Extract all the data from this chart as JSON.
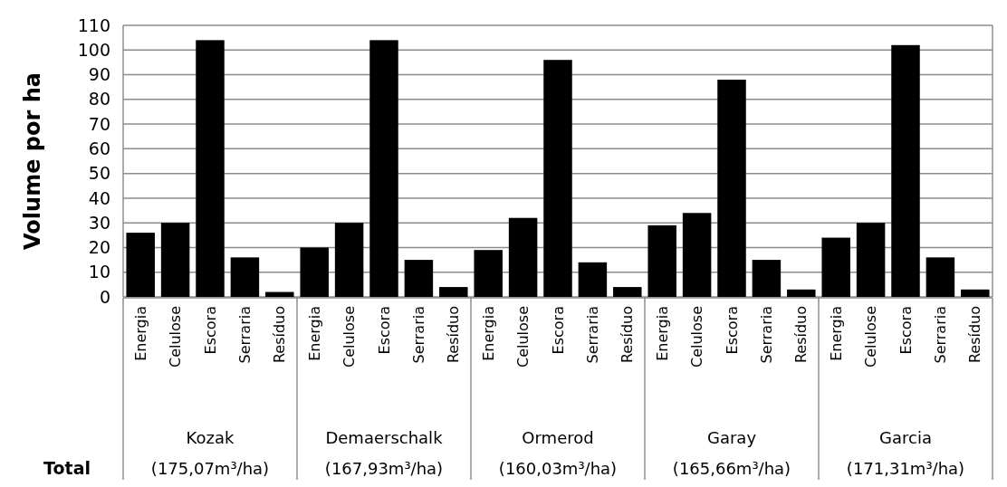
{
  "chart_data": {
    "type": "bar",
    "ylabel": "Volume por ha",
    "categories": [
      "Energia",
      "Celulose",
      "Escora",
      "Serraria",
      "Resíduo",
      "Energia",
      "Celulose",
      "Escora",
      "Serraria",
      "Resíduo",
      "Energia",
      "Celulose",
      "Escora",
      "Serraria",
      "Resíduo",
      "Energia",
      "Celulose",
      "Escora",
      "Serraria",
      "Resíduo",
      "Energia",
      "Celulose",
      "Escora",
      "Serraria",
      "Resíduo"
    ],
    "values": [
      26,
      30,
      104,
      16,
      2,
      20,
      30,
      104,
      15,
      4,
      19,
      32,
      96,
      14,
      4,
      29,
      34,
      88,
      15,
      3,
      24,
      30,
      102,
      16,
      3
    ],
    "color": "#000000",
    "ylim": [
      0,
      110
    ],
    "yticks": [
      0,
      10,
      20,
      30,
      40,
      50,
      60,
      70,
      80,
      90,
      100,
      110
    ],
    "grid": "y",
    "annotations": [
      "Total",
      "Kozak\n(175,07m³/ha)",
      "Demaerschalk\n(167,93m³/ha)",
      "Ormerod\n(160,03m³/ha)",
      "Garay\n(165,66m³/ha)",
      "Garcia\n(171,31m³/ha)"
    ]
  }
}
